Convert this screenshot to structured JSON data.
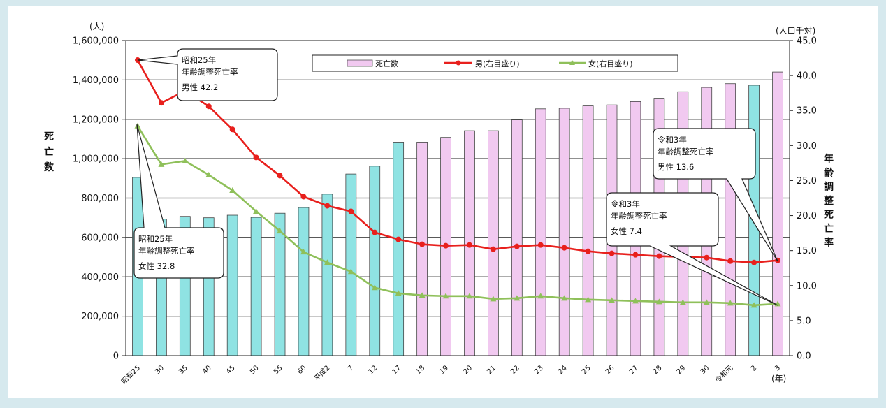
{
  "chart_data": {
    "type": "bar",
    "categories": [
      "昭和25",
      "30",
      "35",
      "40",
      "45",
      "50",
      "55",
      "60",
      "平成2",
      "7",
      "12",
      "17",
      "18",
      "19",
      "20",
      "21",
      "22",
      "23",
      "24",
      "25",
      "26",
      "27",
      "28",
      "29",
      "30",
      "令和元",
      "2",
      "3"
    ],
    "x_unit": "(年)",
    "y_left": {
      "unit": "(人)",
      "label": "死亡数",
      "range": [
        0,
        1600000
      ],
      "ticks": [
        "0",
        "200,000",
        "400,000",
        "600,000",
        "800,000",
        "1,000,000",
        "1,200,000",
        "1,400,000",
        "1,600,000"
      ]
    },
    "y_right": {
      "unit": "(人口千対)",
      "label": "年齢調整死亡率",
      "range": [
        0,
        45
      ],
      "ticks": [
        "0.0",
        "5.0",
        "10.0",
        "15.0",
        "20.0",
        "25.0",
        "30.0",
        "35.0",
        "40.0",
        "45.0"
      ]
    },
    "series": [
      {
        "name": "死亡数",
        "kind": "bar",
        "axis": "left",
        "values": [
          905000,
          693000,
          707000,
          700000,
          713000,
          702000,
          723000,
          752000,
          820000,
          922000,
          962000,
          1084000,
          1084000,
          1108000,
          1142000,
          1142000,
          1197000,
          1253000,
          1256000,
          1268000,
          1273000,
          1290000,
          1307000,
          1340000,
          1362000,
          1381000,
          1373000,
          1440000
        ],
        "colors_by_index": {
          "0-11": "#8fe3e3",
          "12-25": "#f1c9f0",
          "26": "#8fe3e3",
          "27": "#f1c9f0"
        }
      },
      {
        "name": "男(右目盛り)",
        "kind": "line",
        "axis": "right",
        "color": "#e8201d",
        "values": [
          42.2,
          36.1,
          37.8,
          35.6,
          32.3,
          28.3,
          25.7,
          22.7,
          21.4,
          20.6,
          17.6,
          16.6,
          15.9,
          15.7,
          15.8,
          15.2,
          15.6,
          15.8,
          15.4,
          14.9,
          14.6,
          14.4,
          14.2,
          14.1,
          14.0,
          13.5,
          13.3,
          13.6
        ]
      },
      {
        "name": "女(右目盛り)",
        "kind": "line",
        "axis": "right",
        "color": "#8fc05a",
        "values": [
          32.8,
          27.3,
          27.8,
          25.8,
          23.6,
          20.6,
          17.8,
          14.8,
          13.3,
          12.0,
          9.7,
          8.9,
          8.6,
          8.5,
          8.5,
          8.1,
          8.2,
          8.5,
          8.2,
          8.0,
          7.9,
          7.8,
          7.7,
          7.6,
          7.6,
          7.5,
          7.2,
          7.4
        ]
      }
    ],
    "legend": {
      "position": "top",
      "entries": [
        "死亡数",
        "男(右目盛り)",
        "女(右目盛り)"
      ]
    },
    "grid": true,
    "annotations": [
      {
        "lines": [
          "昭和25年",
          "年齢調整死亡率",
          "男性  42.2"
        ]
      },
      {
        "lines": [
          "昭和25年",
          "年齢調整死亡率",
          "女性  32.8"
        ]
      },
      {
        "lines": [
          "令和3年",
          "年齢調整死亡率",
          "男性  13.6"
        ]
      },
      {
        "lines": [
          "令和3年",
          "年齢調整死亡率",
          "女性  7.4"
        ]
      }
    ]
  },
  "colors": {
    "background": "#d6e9ee",
    "plot": "#ffffff",
    "bar_early": "#8fe3e3",
    "bar_late": "#f1c9f0",
    "male": "#e8201d",
    "female": "#8fc05a"
  }
}
